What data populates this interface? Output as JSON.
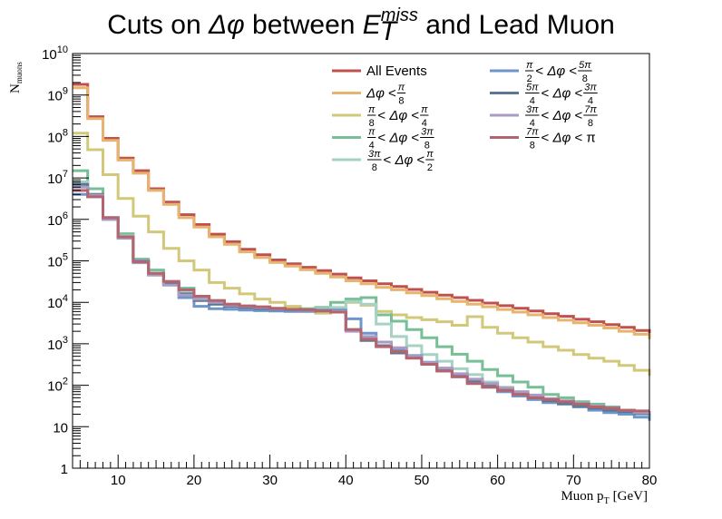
{
  "chart_data": {
    "type": "line",
    "title": {
      "prefix": "Cuts on ",
      "var": "Δφ",
      "mid": " between ",
      "emain": "E",
      "esub": "T",
      "esup": "miss",
      "suffix": " and Lead Muon"
    },
    "xlabel": "Muon p",
    "xlabel_sub": "T",
    "xlabel_unit": "[GeV]",
    "ylabel": "N",
    "ylabel_sub": "muons",
    "xlim": [
      4,
      80
    ],
    "ylim": [
      1,
      10000000000
    ],
    "yscale": "log",
    "grid": false,
    "legend_position": "top-right",
    "x_ticks": [
      "10",
      "20",
      "30",
      "40",
      "50",
      "60",
      "70",
      "80"
    ],
    "y_ticks": [
      {
        "base": "1",
        "exp": ""
      },
      {
        "base": "10",
        "exp": ""
      },
      {
        "base": "10",
        "exp": "2"
      },
      {
        "base": "10",
        "exp": "3"
      },
      {
        "base": "10",
        "exp": "4"
      },
      {
        "base": "10",
        "exp": "5"
      },
      {
        "base": "10",
        "exp": "6"
      },
      {
        "base": "10",
        "exp": "7"
      },
      {
        "base": "10",
        "exp": "8"
      },
      {
        "base": "10",
        "exp": "9"
      },
      {
        "base": "10",
        "exp": "10"
      }
    ],
    "bin_edges": [
      4,
      6,
      8,
      10,
      12,
      14,
      16,
      18,
      20,
      22,
      24,
      26,
      28,
      30,
      32,
      34,
      36,
      38,
      40,
      42,
      44,
      46,
      48,
      50,
      52,
      54,
      56,
      58,
      60,
      62,
      64,
      66,
      68,
      70,
      72,
      74,
      76,
      78,
      80
    ],
    "series": [
      {
        "name": "All Events",
        "color": "#c0504d",
        "legend": [
          {
            "t": "All Events"
          }
        ],
        "values": [
          1800000000.0,
          300000000.0,
          90000000.0,
          30000000.0,
          15000000.0,
          5500000.0,
          2600000.0,
          1300000.0,
          750000.0,
          440000.0,
          290000.0,
          190000.0,
          140000.0,
          105000.0,
          85000.0,
          70000.0,
          58000.0,
          48000.0,
          39000.0,
          33000.0,
          28000.0,
          24000.0,
          20500.0,
          17500.0,
          15000.0,
          13000.0,
          11200.0,
          9600.0,
          8300.0,
          7200.0,
          6200.0,
          5300.0,
          4600.0,
          3900.0,
          3400.0,
          2900.0,
          2500.0,
          2100.0,
          1600.0
        ]
      },
      {
        "name": "Δφ < π/8",
        "color": "#e6b46e",
        "legend": [
          {
            "t": "Δφ < "
          },
          {
            "n": "π",
            "d": "8"
          }
        ],
        "values": [
          1500000000.0,
          270000000.0,
          80000000.0,
          27000000.0,
          13000000.0,
          5000000.0,
          2300000.0,
          1100000.0,
          650000.0,
          380000.0,
          250000.0,
          165000.0,
          120000.0,
          92000.0,
          75000.0,
          61000.0,
          50000.0,
          41000.0,
          33000.0,
          28000.0,
          23000.0,
          20000.0,
          17000.0,
          14500.0,
          12200.0,
          10500.0,
          9000.0,
          7800.0,
          6700.0,
          5800.0,
          5000.0,
          4300.0,
          3700.0,
          3200.0,
          2800.0,
          2400.0,
          2000.0,
          1700.0,
          1300.0
        ]
      },
      {
        "name": "π/8 < Δφ < π/4",
        "color": "#d2c87a",
        "legend": [
          {
            "n": "π",
            "d": "8"
          },
          {
            "t": " < Δφ < "
          },
          {
            "n": "π",
            "d": "4"
          }
        ],
        "values": [
          120000000.0,
          48000000.0,
          12000000.0,
          3200000.0,
          1200000.0,
          500000.0,
          200000.0,
          100000.0,
          60000.0,
          30000.0,
          22000.0,
          16000.0,
          12000.0,
          10000.0,
          8000.0,
          6500.0,
          5500.0,
          7000.0,
          10000.0,
          8500.0,
          6000.0,
          5000.0,
          4300.0,
          3800.0,
          3400.0,
          2800.0,
          4500.0,
          2500.0,
          1800.0,
          1400.0,
          1100.0,
          850,
          700,
          550,
          450,
          380,
          300,
          230,
          170
        ]
      },
      {
        "name": "π/4 < Δφ < 3π/8",
        "color": "#78be96",
        "legend": [
          {
            "n": "π",
            "d": "4"
          },
          {
            "t": " < Δφ < "
          },
          {
            "n": "3π",
            "d": "8"
          }
        ],
        "values": [
          15000000.0,
          5500000.0,
          1100000.0,
          450000.0,
          110000.0,
          60000.0,
          30000.0,
          22000.0,
          13000.0,
          11000.0,
          9000.0,
          8000.0,
          7500.0,
          7000.0,
          6500.0,
          7000.0,
          7500.0,
          10000.0,
          12000.0,
          13000.0,
          5000.0,
          3500.0,
          2200.0,
          1400.0,
          850,
          560,
          380,
          240,
          170,
          120,
          90,
          60,
          50,
          40,
          35,
          30,
          25,
          22,
          18
        ]
      },
      {
        "name": "3π/8 < Δφ < π/2",
        "color": "#a5d2c3",
        "legend": [
          {
            "n": "3π",
            "d": "8"
          },
          {
            "t": " < Δφ < "
          },
          {
            "n": "π",
            "d": "2"
          }
        ],
        "values": [
          8000000.0,
          4000000.0,
          1000000.0,
          400000.0,
          100000.0,
          50000.0,
          28000.0,
          18000.0,
          12000.0,
          9000.0,
          8000.0,
          7200.0,
          7000.0,
          6800.0,
          6500.0,
          6500.0,
          7000.0,
          7500.0,
          10500.0,
          9000.0,
          3000.0,
          1500.0,
          900,
          550,
          380,
          250,
          180,
          120,
          90,
          70,
          55,
          45,
          38,
          32,
          28,
          25,
          22,
          20,
          16
        ]
      },
      {
        "name": "π/2 < Δφ < 5π/8",
        "color": "#6e96c8",
        "legend": [
          {
            "n": "π",
            "d": "2"
          },
          {
            "t": " < Δφ < "
          },
          {
            "n": "5π",
            "d": "8"
          }
        ],
        "values": [
          4000000.0,
          3500000.0,
          1000000.0,
          380000.0,
          100000.0,
          50000.0,
          28000.0,
          13000.0,
          8000.0,
          7000.0,
          6800.0,
          6500.0,
          6300.0,
          6200.0,
          6000.0,
          6000.0,
          6500.0,
          6500.0,
          4000.0,
          1800.0,
          1100.0,
          750,
          520,
          360,
          240,
          160,
          120,
          90,
          70,
          55,
          45,
          38,
          35,
          30,
          25,
          22,
          20,
          17,
          14
        ]
      },
      {
        "name": "5π/4 < Δφ < 3π/4",
        "color": "#5a7896",
        "legend": [
          {
            "n": "5π",
            "d": "4"
          },
          {
            "t": " < Δφ < "
          },
          {
            "n": "3π",
            "d": "4"
          }
        ],
        "values": [
          7000000.0,
          4000000.0,
          1100000.0,
          360000.0,
          95000.0,
          48000.0,
          28000.0,
          16000.0,
          11000.0,
          9000.0,
          8000.0,
          7500.0,
          7000.0,
          6800.0,
          6600.0,
          6500.0,
          6300.0,
          6000.0,
          2200.0,
          1200.0,
          900,
          600,
          480,
          340,
          240,
          180,
          130,
          100,
          80,
          62,
          50,
          42,
          36,
          32,
          28,
          25,
          23,
          21,
          19
        ]
      },
      {
        "name": "3π/4 < Δφ < 7π/8",
        "color": "#aa9bc3",
        "legend": [
          {
            "n": "3π",
            "d": "4"
          },
          {
            "t": " < Δφ < "
          },
          {
            "n": "7π",
            "d": "8"
          }
        ],
        "values": [
          6000000.0,
          3800000.0,
          1000000.0,
          350000.0,
          90000.0,
          45000.0,
          26000.0,
          15000.0,
          12000.0,
          10000.0,
          8500.0,
          8000.0,
          7500.0,
          7000.0,
          6800.0,
          6500.0,
          6200.0,
          6000.0,
          2000.0,
          1500.0,
          1100.0,
          800,
          500,
          350,
          260,
          190,
          140,
          110,
          85,
          70,
          58,
          48,
          42,
          36,
          32,
          28,
          25,
          22,
          20
        ]
      },
      {
        "name": "7π/8 < Δφ < π",
        "color": "#b4646e",
        "legend": [
          {
            "n": "7π",
            "d": "8"
          },
          {
            "t": " < Δφ < π"
          }
        ],
        "values": [
          5000000.0,
          3500000.0,
          1100000.0,
          380000.0,
          95000.0,
          50000.0,
          32000.0,
          20000.0,
          14000.0,
          11000.0,
          9000.0,
          8200.0,
          7800.0,
          7200.0,
          6800.0,
          6600.0,
          6200.0,
          5800.0,
          2200.0,
          1300.0,
          850,
          650,
          450,
          320,
          220,
          160,
          110,
          90,
          75,
          60,
          50,
          45,
          40,
          35,
          30,
          28,
          25,
          24,
          24
        ]
      }
    ]
  }
}
